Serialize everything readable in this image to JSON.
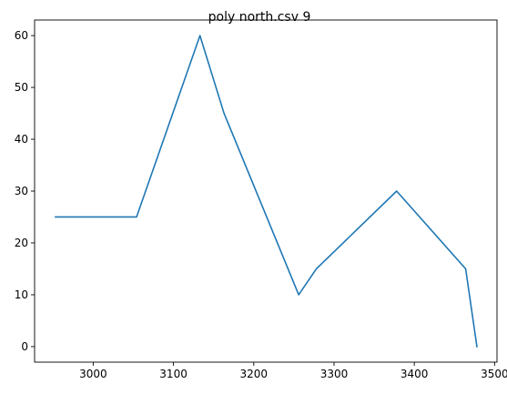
{
  "chart_data": {
    "type": "line",
    "title": "poly north.csv 9",
    "xlabel": "",
    "ylabel": "",
    "xlim": [
      2927,
      3503
    ],
    "ylim": [
      -3,
      63
    ],
    "xticks": [
      3000,
      3100,
      3200,
      3300,
      3400,
      3500
    ],
    "yticks": [
      0,
      10,
      20,
      30,
      40,
      50,
      60
    ],
    "xtick_labels": [
      "3000",
      "3100",
      "3200",
      "3300",
      "3400",
      "3500"
    ],
    "ytick_labels": [
      "0",
      "10",
      "20",
      "30",
      "40",
      "50",
      "60"
    ],
    "grid": false,
    "legend": "none",
    "series": [
      {
        "color": "#1f77b4",
        "x": [
          2953,
          3054,
          3133,
          3163,
          3256,
          3278,
          3378,
          3464,
          3478
        ],
        "y": [
          25,
          25,
          60,
          45,
          10,
          15,
          30,
          15,
          0
        ]
      }
    ]
  }
}
